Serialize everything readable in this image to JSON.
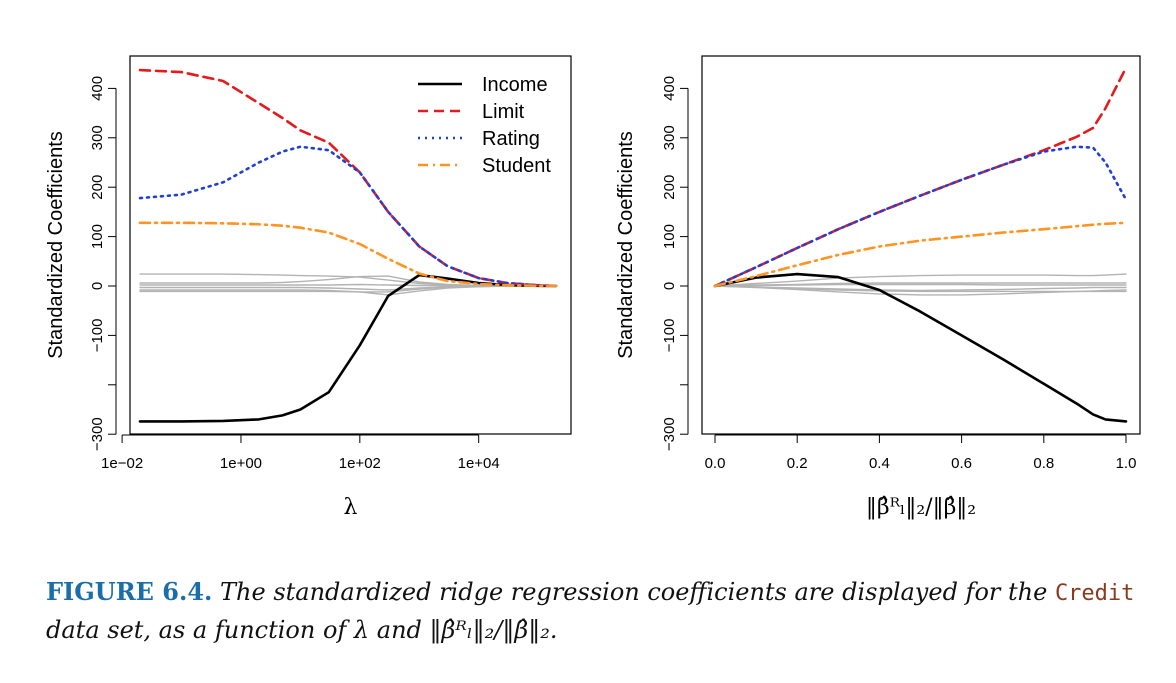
{
  "chart_data": [
    {
      "type": "line",
      "panel": "left",
      "xscale": "log10",
      "xlim": [
        0.02,
        200000
      ],
      "ylim": [
        -300,
        450
      ],
      "x_ticks": [
        0.01,
        1,
        100,
        10000
      ],
      "x_tick_labels": [
        "1e−02",
        "1e+00",
        "1e+02",
        "1e+04"
      ],
      "y_ticks": [
        -300,
        -100,
        0,
        100,
        200,
        300,
        400
      ],
      "y_tick_labels": [
        "−300",
        "−100",
        "0",
        "100",
        "200",
        "300",
        "400"
      ],
      "y_minor_ticks": [
        -200
      ],
      "ylabel": "Standardized Coefficients",
      "xlabel": "λ",
      "legend_position": "top-right",
      "grid": false,
      "x": [
        0.02,
        0.1,
        0.5,
        2,
        5,
        10,
        30,
        100,
        300,
        1000,
        3000,
        10000,
        30000,
        100000,
        200000
      ],
      "series": [
        {
          "name": "Income",
          "color": "#000000",
          "dash": "solid",
          "values": [
            -274,
            -274,
            -273,
            -270,
            -262,
            -250,
            -215,
            -120,
            -20,
            22,
            15,
            6,
            2,
            0.5,
            0.2
          ]
        },
        {
          "name": "Limit",
          "color": "#e41a1c",
          "dash": "dashed",
          "values": [
            437,
            433,
            415,
            370,
            340,
            315,
            290,
            230,
            150,
            80,
            40,
            16,
            6,
            1.5,
            0.5
          ]
        },
        {
          "name": "Rating",
          "color": "#1f3fd6",
          "dash": "dotted",
          "values": [
            178,
            185,
            210,
            250,
            272,
            282,
            275,
            230,
            150,
            80,
            40,
            16,
            6,
            1.5,
            0.5
          ]
        },
        {
          "name": "Student",
          "color": "#ff9422",
          "dash": "dashdot",
          "values": [
            128,
            128,
            127,
            125,
            122,
            118,
            108,
            85,
            55,
            25,
            10,
            4,
            1.5,
            0.5,
            0.2
          ]
        },
        {
          "color": "#b3b3b3",
          "dash": "solid",
          "values": [
            24,
            24,
            24,
            23,
            22,
            21,
            20,
            18,
            12,
            5,
            2,
            1,
            0.5,
            0.1,
            0
          ]
        },
        {
          "color": "#b3b3b3",
          "dash": "solid",
          "values": [
            6,
            6,
            6,
            6,
            7,
            9,
            13,
            19,
            20,
            8,
            3,
            1,
            0.4,
            0.1,
            0
          ]
        },
        {
          "color": "#b3b3b3",
          "dash": "solid",
          "values": [
            2,
            2,
            2,
            2,
            2,
            2,
            2,
            3,
            2,
            1,
            0.5,
            0.2,
            0.1,
            0,
            0
          ]
        },
        {
          "color": "#b3b3b3",
          "dash": "solid",
          "values": [
            -3,
            -3,
            -3,
            -3,
            -3,
            -3,
            -4,
            -6,
            -8,
            -4,
            -2,
            -1,
            -0.3,
            -0.1,
            0
          ]
        },
        {
          "color": "#b3b3b3",
          "dash": "solid",
          "values": [
            -8,
            -8,
            -8,
            -8,
            -8,
            -8,
            -9,
            -12,
            -18,
            -10,
            -4,
            -1.5,
            -0.5,
            -0.1,
            0
          ]
        },
        {
          "color": "#b3b3b3",
          "dash": "solid",
          "values": [
            -11,
            -11,
            -11,
            -11,
            -11,
            -11,
            -11,
            -12,
            -12,
            -6,
            -2,
            -1,
            -0.3,
            0,
            0
          ]
        }
      ]
    },
    {
      "type": "line",
      "panel": "right",
      "xlim": [
        0,
        1
      ],
      "ylim": [
        -300,
        450
      ],
      "x_ticks": [
        0,
        0.2,
        0.4,
        0.6,
        0.8,
        1.0
      ],
      "x_tick_labels": [
        "0.0",
        "0.2",
        "0.4",
        "0.6",
        "0.8",
        "1.0"
      ],
      "y_ticks": [
        -300,
        -100,
        0,
        100,
        200,
        300,
        400
      ],
      "y_tick_labels": [
        "−300",
        "−100",
        "0",
        "100",
        "200",
        "300",
        "400"
      ],
      "y_minor_ticks": [
        -200
      ],
      "ylabel": "Standardized Coefficients",
      "xlabel": "‖β̂ᴿₗ‖₂/‖β̂‖₂",
      "grid": false,
      "x": [
        0,
        0.1,
        0.2,
        0.3,
        0.4,
        0.5,
        0.6,
        0.7,
        0.8,
        0.88,
        0.92,
        0.95,
        1.0
      ],
      "series": [
        {
          "name": "Income",
          "color": "#000000",
          "dash": "solid",
          "values": [
            0,
            17,
            24,
            18,
            -8,
            -52,
            -100,
            -148,
            -198,
            -238,
            -260,
            -270,
            -274
          ]
        },
        {
          "name": "Limit",
          "color": "#e41a1c",
          "dash": "dashed",
          "values": [
            0,
            38,
            77,
            115,
            150,
            183,
            215,
            245,
            275,
            302,
            320,
            360,
            442
          ]
        },
        {
          "name": "Rating",
          "color": "#1f3fd6",
          "dash": "dotted",
          "values": [
            0,
            38,
            77,
            115,
            150,
            183,
            215,
            245,
            272,
            282,
            280,
            250,
            175
          ]
        },
        {
          "name": "Student",
          "color": "#ff9422",
          "dash": "dashdot",
          "values": [
            0,
            20,
            42,
            63,
            80,
            92,
            100,
            108,
            115,
            121,
            124,
            126,
            128
          ]
        },
        {
          "color": "#b3b3b3",
          "dash": "solid",
          "values": [
            0,
            5,
            10,
            16,
            19,
            21,
            22,
            22,
            22,
            21,
            21,
            22,
            24
          ]
        },
        {
          "color": "#b3b3b3",
          "dash": "solid",
          "values": [
            0,
            2,
            3,
            5,
            6,
            6,
            6,
            6,
            6,
            6,
            6,
            6,
            6
          ]
        },
        {
          "color": "#b3b3b3",
          "dash": "solid",
          "values": [
            0,
            1,
            2,
            3,
            3,
            3,
            3,
            2,
            2,
            2,
            2,
            2,
            2
          ]
        },
        {
          "color": "#b3b3b3",
          "dash": "solid",
          "values": [
            0,
            -2,
            -4,
            -6,
            -8,
            -9,
            -8,
            -7,
            -5,
            -4,
            -3,
            -3,
            -3
          ]
        },
        {
          "color": "#b3b3b3",
          "dash": "solid",
          "values": [
            0,
            -3,
            -7,
            -12,
            -16,
            -18,
            -18,
            -16,
            -13,
            -11,
            -10,
            -9,
            -8
          ]
        },
        {
          "color": "#b3b3b3",
          "dash": "solid",
          "values": [
            0,
            -2,
            -5,
            -8,
            -10,
            -11,
            -11,
            -11,
            -11,
            -11,
            -11,
            -11,
            -11
          ]
        }
      ]
    }
  ],
  "caption": {
    "label": "FIGURE 6.4.",
    "text_1": " The standardized ridge regression coefficients are displayed for the ",
    "dataset": "Credit",
    "text_2": " data set, as a function of ",
    "lambda": "λ",
    "text_3": " and ",
    "norm": "‖β̂ᴿₗ‖₂/‖β̂‖₂",
    "text_4": "."
  }
}
